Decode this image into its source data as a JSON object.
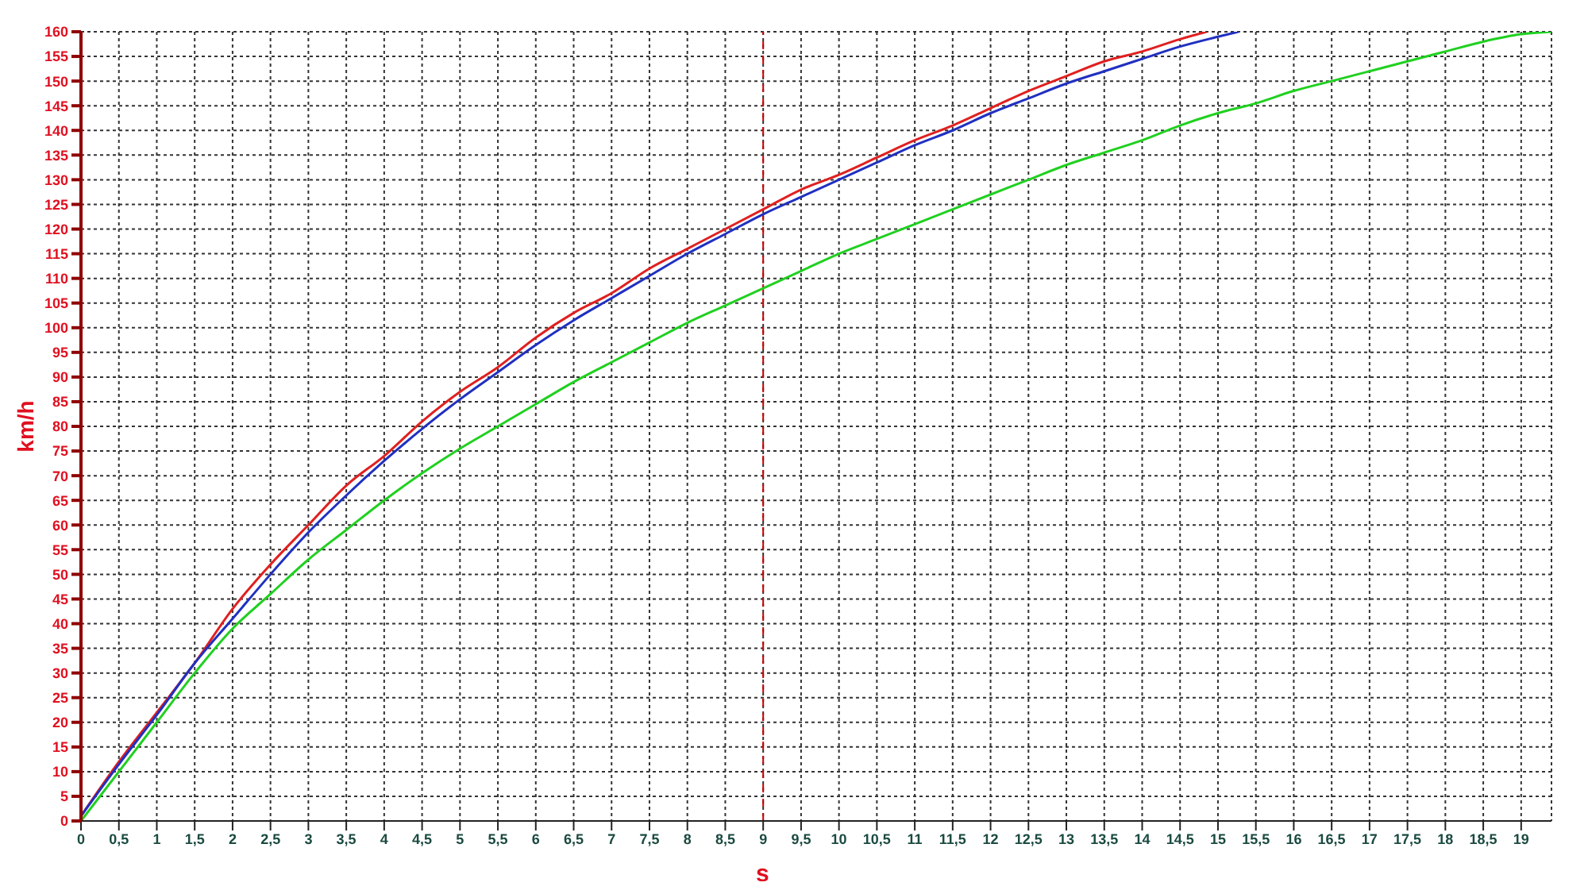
{
  "chart_data": {
    "type": "line",
    "xlabel": "s",
    "ylabel": "km/h",
    "xlim": [
      0,
      19.4
    ],
    "ylim": [
      0,
      160
    ],
    "xticks": [
      0,
      {
        "value": 0.5,
        "label": "0,5"
      },
      1,
      {
        "value": 1.5,
        "label": "1,5"
      },
      2,
      {
        "value": 2.5,
        "label": "2,5"
      },
      3,
      {
        "value": 3.5,
        "label": "3,5"
      },
      4,
      {
        "value": 4.5,
        "label": "4,5"
      },
      5,
      {
        "value": 5.5,
        "label": "5,5"
      },
      6,
      {
        "value": 6.5,
        "label": "6,5"
      },
      7,
      {
        "value": 7.5,
        "label": "7,5"
      },
      8,
      {
        "value": 8.5,
        "label": "8,5"
      },
      9,
      {
        "value": 9.5,
        "label": "9,5"
      },
      10,
      {
        "value": 10.5,
        "label": "10,5"
      },
      11,
      {
        "value": 11.5,
        "label": "11,5"
      },
      12,
      {
        "value": 12.5,
        "label": "12,5"
      },
      13,
      {
        "value": 13.5,
        "label": "13,5"
      },
      14,
      {
        "value": 14.5,
        "label": "14,5"
      },
      15,
      {
        "value": 15.5,
        "label": "15,5"
      },
      16,
      {
        "value": 16.5,
        "label": "16,5"
      },
      17,
      {
        "value": 17.5,
        "label": "17,5"
      },
      18,
      {
        "value": 18.5,
        "label": "18,5"
      },
      19
    ],
    "yticks": [
      0,
      5,
      10,
      15,
      20,
      25,
      30,
      35,
      40,
      45,
      50,
      55,
      60,
      65,
      70,
      75,
      80,
      85,
      90,
      95,
      100,
      105,
      110,
      115,
      120,
      125,
      130,
      135,
      140,
      145,
      150,
      155,
      160
    ],
    "grid": true,
    "ref_lines": [
      {
        "axis": "x",
        "value": 9,
        "color": "#cc0000",
        "line_style": "dashed"
      }
    ],
    "series": [
      {
        "color": "#e02020",
        "x": [
          0,
          0.5,
          1,
          1.5,
          2,
          2.5,
          3,
          3.5,
          4,
          4.5,
          5,
          5.5,
          6,
          6.5,
          7,
          7.5,
          8,
          8.5,
          9,
          9.5,
          10,
          10.5,
          11,
          11.5,
          12,
          12.5,
          13,
          13.5,
          14,
          14.5,
          14.85
        ],
        "values": [
          1,
          12,
          22,
          32,
          43,
          52,
          60,
          68,
          74,
          81,
          87,
          92,
          98,
          103,
          107,
          112,
          116,
          120,
          124,
          128,
          131,
          134.5,
          138,
          141,
          144.5,
          148,
          151,
          154,
          156,
          158.5,
          160
        ]
      },
      {
        "color": "#2030c0",
        "x": [
          0,
          0.5,
          1,
          1.5,
          2,
          2.5,
          3,
          3.5,
          4,
          4.5,
          5,
          5.5,
          6,
          6.5,
          7,
          7.5,
          8,
          8.5,
          9,
          9.5,
          10,
          10.5,
          11,
          11.5,
          12,
          12.5,
          13,
          13.5,
          14,
          14.5,
          15,
          15.27
        ],
        "values": [
          1,
          11.5,
          21.5,
          32,
          41,
          50,
          58.5,
          66,
          73,
          79.5,
          85.5,
          91,
          96.5,
          101.5,
          106,
          110.5,
          115,
          119,
          123,
          126.5,
          130,
          133.5,
          137,
          140,
          143.5,
          146.5,
          149.5,
          152,
          154.5,
          157,
          159,
          160
        ]
      },
      {
        "color": "#20d020",
        "x": [
          0,
          0.5,
          1,
          1.5,
          2,
          2.5,
          3,
          3.5,
          4,
          4.5,
          5,
          5.5,
          6,
          6.5,
          7,
          7.5,
          8,
          8.5,
          9,
          9.5,
          10,
          10.5,
          11,
          11.5,
          12,
          12.5,
          13,
          13.5,
          14,
          14.5,
          15,
          15.5,
          16,
          16.5,
          17,
          17.5,
          18,
          18.5,
          19,
          19.4
        ],
        "values": [
          0,
          10,
          20,
          30,
          39,
          46,
          53,
          59,
          65,
          70.5,
          75.5,
          80,
          84.5,
          89,
          93,
          97,
          101,
          104.5,
          108,
          111.5,
          115,
          118,
          121,
          124,
          127,
          130,
          133,
          135.5,
          138,
          141,
          143.5,
          145.5,
          148,
          150,
          152,
          154,
          156,
          158,
          159.5,
          160
        ]
      }
    ]
  }
}
